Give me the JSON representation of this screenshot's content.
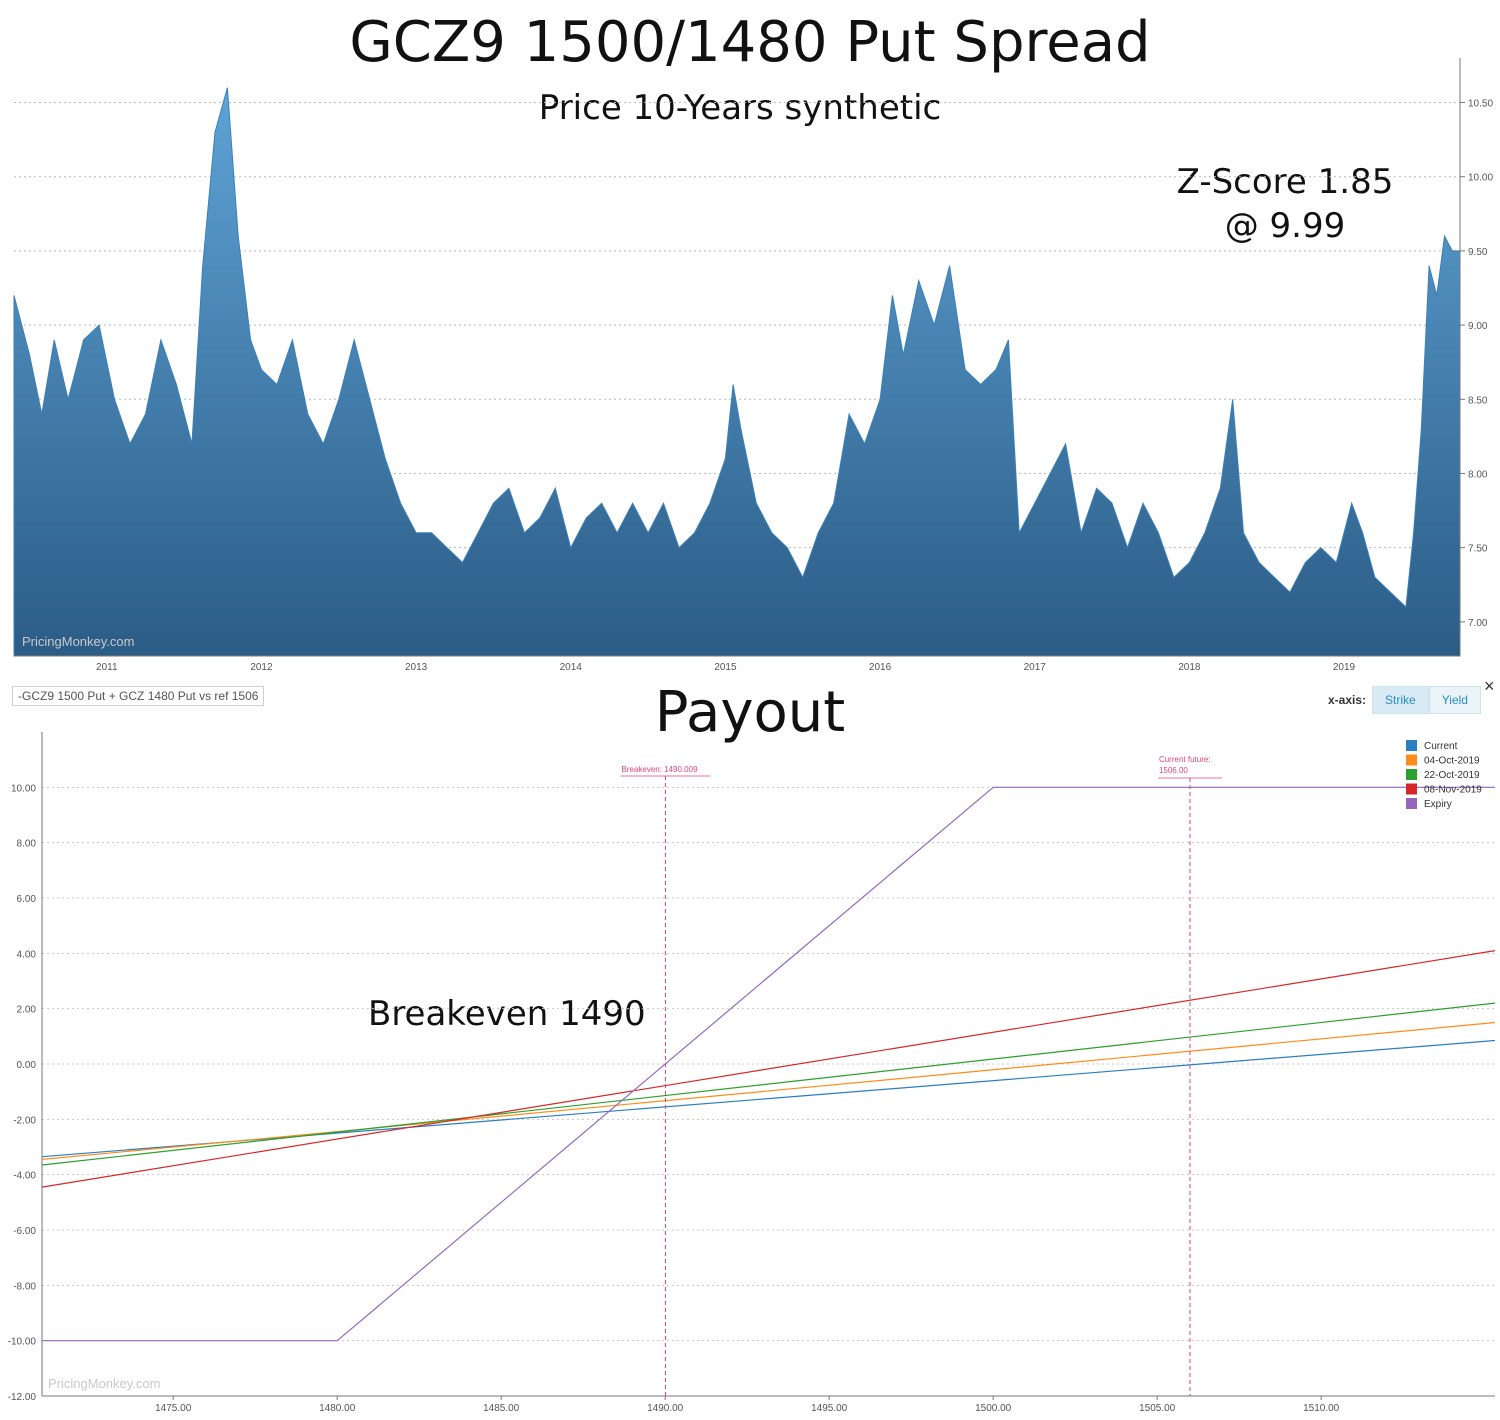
{
  "header": {
    "title": "GCZ9 1500/1480 Put Spread",
    "subtitle": "Price 10-Years synthetic"
  },
  "annotations": {
    "zscore_line1": "Z-Score 1.85",
    "zscore_line2": "@ 9.99",
    "breakeven": "Breakeven 1490"
  },
  "payout_title": "Payout",
  "strategy_label": "-GCZ9 1500 Put + GCZ 1480 Put vs ref 1506",
  "xaxis_toggle": {
    "label": "x-axis:",
    "options": [
      "Strike",
      "Yield"
    ],
    "selected": "Strike",
    "close": "×"
  },
  "watermarks": [
    "PricingMonkey.com",
    "PricingMonkey.com"
  ],
  "colors": {
    "area": "#3a80b8",
    "current": "#2a7ec2",
    "oct04": "#ff8c1a",
    "oct22": "#2ca02c",
    "nov08": "#d62728",
    "expiry": "#9467bd",
    "marker": "#e0457b"
  },
  "chart_data": [
    {
      "type": "area",
      "title": "GCZ9 1500/1480 Put Spread",
      "subtitle": "Price 10-Years synthetic",
      "x_ticks": [
        "2011",
        "2012",
        "2013",
        "2014",
        "2015",
        "2016",
        "2017",
        "2018",
        "2019"
      ],
      "y_ticks": [
        "7.00",
        "7.50",
        "8.00",
        "8.50",
        "9.00",
        "9.50",
        "10.00",
        "10.50"
      ],
      "ylim": [
        6.77,
        10.8
      ],
      "xlim": [
        2010.4,
        2019.75
      ],
      "series": [
        {
          "points": [
            [
              2010.4,
              9.2
            ],
            [
              2010.5,
              8.8
            ],
            [
              2010.58,
              8.4
            ],
            [
              2010.66,
              8.9
            ],
            [
              2010.75,
              8.5
            ],
            [
              2010.85,
              8.9
            ],
            [
              2010.95,
              9.0
            ],
            [
              2011.05,
              8.5
            ],
            [
              2011.15,
              8.2
            ],
            [
              2011.25,
              8.4
            ],
            [
              2011.35,
              8.9
            ],
            [
              2011.45,
              8.6
            ],
            [
              2011.55,
              8.2
            ],
            [
              2011.62,
              9.4
            ],
            [
              2011.7,
              10.3
            ],
            [
              2011.78,
              10.6
            ],
            [
              2011.85,
              9.6
            ],
            [
              2011.93,
              8.9
            ],
            [
              2012.0,
              8.7
            ],
            [
              2012.1,
              8.6
            ],
            [
              2012.2,
              8.9
            ],
            [
              2012.3,
              8.4
            ],
            [
              2012.4,
              8.2
            ],
            [
              2012.5,
              8.5
            ],
            [
              2012.6,
              8.9
            ],
            [
              2012.7,
              8.5
            ],
            [
              2012.8,
              8.1
            ],
            [
              2012.9,
              7.8
            ],
            [
              2013.0,
              7.6
            ],
            [
              2013.1,
              7.6
            ],
            [
              2013.2,
              7.5
            ],
            [
              2013.3,
              7.4
            ],
            [
              2013.4,
              7.6
            ],
            [
              2013.5,
              7.8
            ],
            [
              2013.6,
              7.9
            ],
            [
              2013.7,
              7.6
            ],
            [
              2013.8,
              7.7
            ],
            [
              2013.9,
              7.9
            ],
            [
              2014.0,
              7.5
            ],
            [
              2014.1,
              7.7
            ],
            [
              2014.2,
              7.8
            ],
            [
              2014.3,
              7.6
            ],
            [
              2014.4,
              7.8
            ],
            [
              2014.5,
              7.6
            ],
            [
              2014.6,
              7.8
            ],
            [
              2014.7,
              7.5
            ],
            [
              2014.8,
              7.6
            ],
            [
              2014.9,
              7.8
            ],
            [
              2015.0,
              8.1
            ],
            [
              2015.05,
              8.6
            ],
            [
              2015.1,
              8.3
            ],
            [
              2015.2,
              7.8
            ],
            [
              2015.3,
              7.6
            ],
            [
              2015.4,
              7.5
            ],
            [
              2015.5,
              7.3
            ],
            [
              2015.6,
              7.6
            ],
            [
              2015.7,
              7.8
            ],
            [
              2015.8,
              8.4
            ],
            [
              2015.9,
              8.2
            ],
            [
              2016.0,
              8.5
            ],
            [
              2016.08,
              9.2
            ],
            [
              2016.15,
              8.8
            ],
            [
              2016.25,
              9.3
            ],
            [
              2016.35,
              9.0
            ],
            [
              2016.45,
              9.4
            ],
            [
              2016.55,
              8.7
            ],
            [
              2016.65,
              8.6
            ],
            [
              2016.75,
              8.7
            ],
            [
              2016.83,
              8.9
            ],
            [
              2016.9,
              7.6
            ],
            [
              2017.0,
              7.8
            ],
            [
              2017.1,
              8.0
            ],
            [
              2017.2,
              8.2
            ],
            [
              2017.3,
              7.6
            ],
            [
              2017.4,
              7.9
            ],
            [
              2017.5,
              7.8
            ],
            [
              2017.6,
              7.5
            ],
            [
              2017.7,
              7.8
            ],
            [
              2017.8,
              7.6
            ],
            [
              2017.9,
              7.3
            ],
            [
              2018.0,
              7.4
            ],
            [
              2018.1,
              7.6
            ],
            [
              2018.2,
              7.9
            ],
            [
              2018.28,
              8.5
            ],
            [
              2018.35,
              7.6
            ],
            [
              2018.45,
              7.4
            ],
            [
              2018.55,
              7.3
            ],
            [
              2018.65,
              7.2
            ],
            [
              2018.75,
              7.4
            ],
            [
              2018.85,
              7.5
            ],
            [
              2018.95,
              7.4
            ],
            [
              2019.05,
              7.8
            ],
            [
              2019.12,
              7.6
            ],
            [
              2019.2,
              7.3
            ],
            [
              2019.3,
              7.2
            ],
            [
              2019.4,
              7.1
            ],
            [
              2019.45,
              7.6
            ],
            [
              2019.5,
              8.3
            ],
            [
              2019.55,
              9.4
            ],
            [
              2019.6,
              9.2
            ],
            [
              2019.65,
              9.6
            ],
            [
              2019.7,
              9.5
            ],
            [
              2019.75,
              9.5
            ]
          ]
        }
      ]
    },
    {
      "type": "line",
      "title": "Payout",
      "x_ticks": [
        "1475.00",
        "1480.00",
        "1485.00",
        "1490.00",
        "1495.00",
        "1500.00",
        "1505.00",
        "1510.00"
      ],
      "y_ticks": [
        "-12.00",
        "-10.00",
        "-8.00",
        "-6.00",
        "-4.00",
        "-2.00",
        "0.00",
        "2.00",
        "4.00",
        "6.00",
        "8.00",
        "10.00"
      ],
      "xlim": [
        1471,
        1515.3
      ],
      "ylim": [
        -12,
        12
      ],
      "series": [
        {
          "name": "Current",
          "x": [
            1471,
            1515.3
          ],
          "y": [
            -3.35,
            0.85
          ]
        },
        {
          "name": "04-Oct-2019",
          "x": [
            1471,
            1515.3
          ],
          "y": [
            -3.45,
            1.5
          ]
        },
        {
          "name": "22-Oct-2019",
          "x": [
            1471,
            1515.3
          ],
          "y": [
            -3.65,
            2.2
          ]
        },
        {
          "name": "08-Nov-2019",
          "x": [
            1471,
            1515.3
          ],
          "y": [
            -4.45,
            4.1
          ]
        },
        {
          "name": "Expiry",
          "x": [
            1471,
            1480,
            1500,
            1515.3
          ],
          "y": [
            -10,
            -10,
            10,
            10
          ]
        }
      ],
      "markers": [
        {
          "label": "Breakeven: 1490.009",
          "x": 1490.009
        },
        {
          "label_line1": "Current future:",
          "label_line2": "1506.00",
          "x": 1506
        }
      ],
      "legend_position": "top-right",
      "grid": true
    }
  ]
}
